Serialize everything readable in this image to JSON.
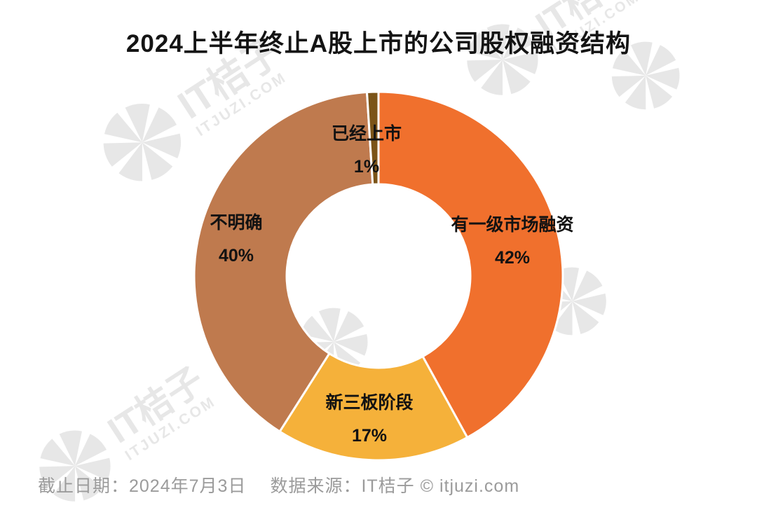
{
  "chart_data": {
    "type": "pie",
    "subtype": "donut",
    "title": "2024上半年终止A股上市的公司股权融资结构",
    "unit": "%",
    "direction": "clockwise",
    "start_angle_deg": 0,
    "inner_radius_ratio": 0.49,
    "legend": "none",
    "labels_position": "on-ring",
    "segments": [
      {
        "label": "有一级市场融资",
        "value": 42,
        "pct_text": "42%",
        "color": "#F0702D"
      },
      {
        "label": "新三板阶段",
        "value": 17,
        "pct_text": "17%",
        "color": "#F5B13A"
      },
      {
        "label": "不明确",
        "value": 40,
        "pct_text": "40%",
        "color": "#BF7A4E"
      },
      {
        "label": "已经上市",
        "value": 1,
        "pct_text": "1%",
        "color": "#7B5418"
      }
    ],
    "gap_color": "#FFFFFF"
  },
  "footer": {
    "date": "截止日期：2024年7月3日",
    "source": "数据来源：IT桔子 © itjuzi.com"
  },
  "watermark": {
    "brand": "IT桔子",
    "domain": "ITJUZI.COM"
  }
}
